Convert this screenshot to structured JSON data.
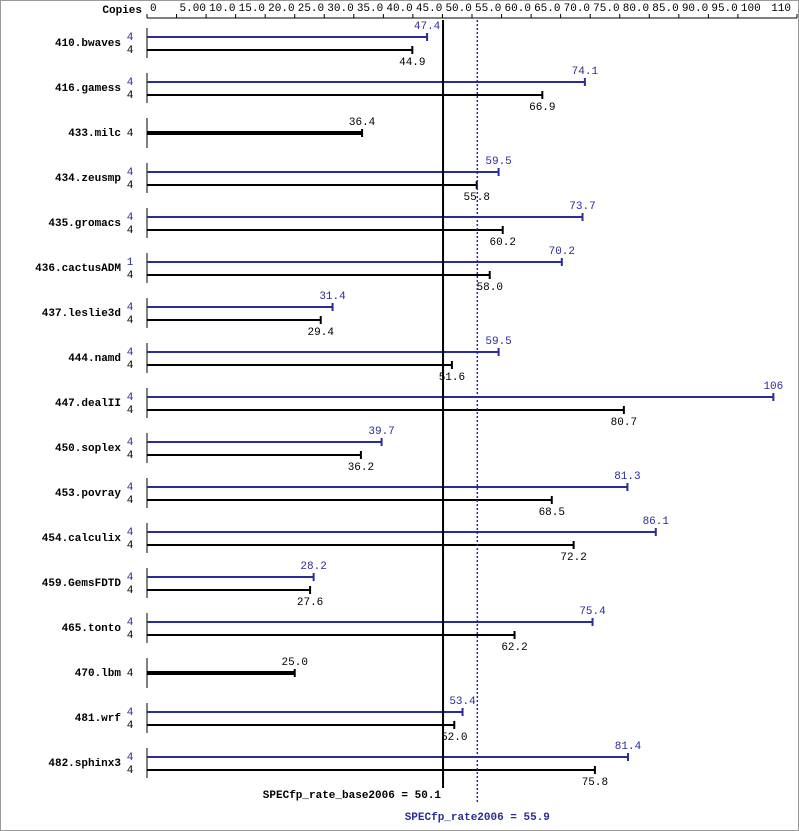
{
  "chart_data": {
    "type": "hbar",
    "axis_title": "Copies",
    "categories": [
      "410.bwaves",
      "416.gamess",
      "433.milc",
      "434.zeusmp",
      "435.gromacs",
      "436.cactusADM",
      "437.leslie3d",
      "444.namd",
      "447.dealII",
      "450.soplex",
      "453.povray",
      "454.calculix",
      "459.GemsFDTD",
      "465.tonto",
      "470.lbm",
      "481.wrf",
      "482.sphinx3"
    ],
    "series": [
      {
        "color": "#2b2b9a",
        "copies": [
          4,
          4,
          null,
          4,
          4,
          1,
          4,
          4,
          4,
          4,
          4,
          4,
          4,
          4,
          null,
          4,
          4
        ],
        "values": [
          47.4,
          74.1,
          null,
          59.5,
          73.7,
          70.2,
          31.4,
          59.5,
          106,
          39.7,
          81.3,
          86.1,
          28.2,
          75.4,
          null,
          53.4,
          81.4
        ],
        "value_labels": [
          "47.4",
          "74.1",
          null,
          "59.5",
          "73.7",
          "70.2",
          "31.4",
          "59.5",
          "106",
          "39.7",
          "81.3",
          "86.1",
          "28.2",
          "75.4",
          null,
          "53.4",
          "81.4"
        ]
      },
      {
        "color": "#000000",
        "copies": [
          4,
          4,
          4,
          4,
          4,
          4,
          4,
          4,
          4,
          4,
          4,
          4,
          4,
          4,
          4,
          4,
          4
        ],
        "values": [
          44.9,
          66.9,
          36.4,
          55.8,
          60.2,
          58.0,
          29.4,
          51.6,
          80.7,
          36.2,
          68.5,
          72.2,
          27.6,
          62.2,
          25.0,
          52.0,
          75.8
        ],
        "value_labels": [
          "44.9",
          "66.9",
          "36.4",
          "55.8",
          "60.2",
          "58.0",
          "29.4",
          "51.6",
          "80.7",
          "36.2",
          "68.5",
          "72.2",
          "27.6",
          "62.2",
          "25.0",
          "52.0",
          "75.8"
        ]
      }
    ],
    "xlim": [
      0,
      110
    ],
    "xticks": [
      0,
      {
        "value": 5,
        "label": "5.00"
      },
      {
        "value": 10,
        "label": "10.0"
      },
      {
        "value": 15,
        "label": "15.0"
      },
      {
        "value": 20,
        "label": "20.0"
      },
      {
        "value": 25,
        "label": "25.0"
      },
      {
        "value": 30,
        "label": "30.0"
      },
      {
        "value": 35,
        "label": "35.0"
      },
      {
        "value": 40,
        "label": "40.0"
      },
      {
        "value": 45,
        "label": "45.0"
      },
      {
        "value": 50,
        "label": "50.0"
      },
      {
        "value": 55,
        "label": "55.0"
      },
      {
        "value": 60,
        "label": "60.0"
      },
      {
        "value": 65,
        "label": "65.0"
      },
      {
        "value": 70,
        "label": "70.0"
      },
      {
        "value": 75,
        "label": "75.0"
      },
      {
        "value": 80,
        "label": "80.0"
      },
      {
        "value": 85,
        "label": "85.0"
      },
      {
        "value": 90,
        "label": "90.0"
      },
      {
        "value": 95,
        "label": "95.0"
      },
      100,
      110
    ],
    "reference_lines": [
      {
        "label": "SPECfp_rate_base2006 = 50.1",
        "value": 50.1,
        "color": "#000000",
        "style": "solid"
      },
      {
        "label": "SPECfp_rate2006 = 55.9",
        "value": 55.9,
        "color": "#2b2b9a",
        "style": "dotted"
      }
    ]
  }
}
